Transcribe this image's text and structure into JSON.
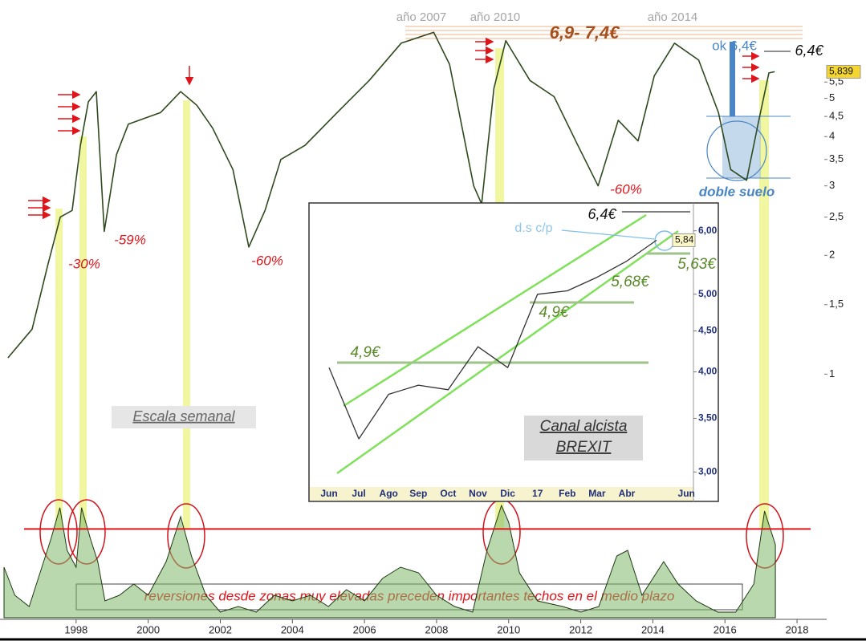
{
  "chart_data": [
    {
      "type": "line",
      "x": [
        1996.11,
        1996.78,
        1997.22,
        1997.56,
        1997.89,
        1998.12,
        1998.34,
        1998.56,
        1998.78,
        1999.12,
        1999.45,
        2000.34,
        2000.9,
        2001.35,
        2001.79,
        2002.35,
        2002.79,
        2003.24,
        2003.68,
        2004.35,
        2005.24,
        2006.13,
        2007.02,
        2007.92,
        2008.36,
        2009.03,
        2009.25,
        2009.59,
        2009.92,
        2010.59,
        2011.26,
        2011.92,
        2012.48,
        2013.04,
        2013.59,
        2014.04,
        2014.6,
        2015.27,
        2015.82,
        2016.16,
        2016.6,
        2016.94,
        2017.22,
        2017.38
      ],
      "values": [
        1.1,
        1.3,
        1.9,
        2.5,
        2.6,
        3.8,
        4.9,
        5.2,
        2.3,
        3.6,
        4.3,
        4.6,
        5.2,
        4.8,
        4.2,
        3.3,
        2.1,
        2.6,
        3.5,
        3.8,
        4.6,
        5.55,
        6.9,
        7.35,
        6.1,
        3.0,
        2.7,
        5.3,
        7.0,
        5.55,
        5.05,
        3.8,
        3.0,
        4.4,
        3.9,
        5.7,
        6.9,
        6.25,
        4.6,
        3.3,
        3.1,
        4.4,
        5.8,
        5.84
      ],
      "color": "#2f4a1f",
      "log_scale": true,
      "xlim": [
        1996,
        2018.8
      ],
      "ylim": [
        0.8,
        7.5
      ],
      "yticks": [
        1,
        {
          "value": 1.5,
          "label": "1,5"
        },
        2,
        {
          "value": 2.5,
          "label": "2,5"
        },
        3,
        {
          "value": 3.5,
          "label": "3,5"
        },
        4,
        {
          "value": 4.5,
          "label": "4,5"
        },
        5,
        {
          "value": 5.5,
          "label": "5,5"
        }
      ],
      "last_value": {
        "value": 5.839,
        "label": "5,839"
      },
      "annotations": [
        "año 2007",
        "año 2010",
        "año 2014",
        "6,9- 7,4€",
        "ok 6,4€",
        "6,4€",
        "-30%",
        "-59%",
        "-60%",
        "-60%",
        "doble suelo",
        "Escala semanal"
      ]
    },
    {
      "type": "area",
      "x": [
        1996.0,
        1996.3,
        1996.7,
        1997.0,
        1997.3,
        1997.55,
        1997.75,
        1998.0,
        1998.15,
        1998.4,
        1998.6,
        1998.8,
        1999.2,
        1999.6,
        2000.0,
        2000.5,
        2000.9,
        2001.2,
        2001.6,
        2002.0,
        2002.5,
        2003.0,
        2003.5,
        2004.0,
        2004.5,
        2005.0,
        2005.5,
        2006.0,
        2006.5,
        2007.0,
        2007.5,
        2008.0,
        2008.5,
        2009.0,
        2009.4,
        2009.8,
        2010.0,
        2010.3,
        2010.8,
        2011.5,
        2012.0,
        2012.5,
        2013.0,
        2013.3,
        2013.7,
        2014.0,
        2014.3,
        2014.7,
        2015.2,
        2015.8,
        2016.3,
        2016.8,
        2017.1,
        2017.4
      ],
      "values": [
        45,
        20,
        10,
        40,
        70,
        98,
        60,
        45,
        98,
        70,
        50,
        15,
        20,
        30,
        20,
        50,
        90,
        55,
        20,
        5,
        10,
        5,
        20,
        15,
        20,
        10,
        25,
        15,
        35,
        45,
        40,
        20,
        10,
        5,
        60,
        100,
        85,
        40,
        15,
        10,
        5,
        10,
        55,
        60,
        20,
        35,
        50,
        30,
        15,
        5,
        5,
        30,
        95,
        65
      ],
      "color": "#7fb86a",
      "threshold": 79,
      "xlim": [
        1996,
        2018.8
      ],
      "ylim": [
        0,
        100
      ],
      "xticks": [
        1998,
        2000,
        2002,
        2004,
        2006,
        2008,
        2010,
        2012,
        2014,
        2016,
        2018
      ],
      "footnote": "reversiones desde zonas muy elevadas preceden importantes techos en el medio plazo"
    },
    {
      "type": "line",
      "categories": [
        "Jun",
        "Jul",
        "Ago",
        "Sep",
        "Oct",
        "Nov",
        "Dic",
        "17",
        "Feb",
        "Mar",
        "Abr",
        null,
        "Jun"
      ],
      "values": [
        4.05,
        3.3,
        3.75,
        3.85,
        3.8,
        4.3,
        4.05,
        5.0,
        5.05,
        5.25,
        5.5,
        5.84,
        null
      ],
      "color": "#333333",
      "log_scale": true,
      "ylim": [
        2.9,
        6.5
      ],
      "yticks": [
        {
          "value": 3,
          "label": "3,00"
        },
        {
          "value": 3.5,
          "label": "3,50"
        },
        {
          "value": 4,
          "label": "4,00"
        },
        {
          "value": 4.5,
          "label": "4,50"
        },
        {
          "value": 5,
          "label": "5,00"
        },
        {
          "value": 6,
          "label": "6,00"
        }
      ],
      "last_value": {
        "value": 5.84,
        "label": "5,84"
      },
      "annotations": [
        "6,4€",
        "d.s c/p",
        "4,9€",
        "5,68€",
        "4,9€",
        "5,63€",
        "Canal alcista",
        "BREXIT"
      ]
    }
  ]
}
